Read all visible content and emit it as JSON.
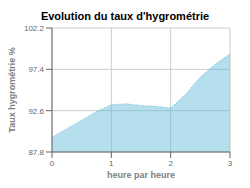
{
  "chart_data": {
    "type": "area",
    "title": "Evolution du taux d'hygrométrie",
    "xlabel": "heure par heure",
    "ylabel": "Taux hygrométrie %",
    "x": [
      0,
      0.25,
      0.5,
      0.75,
      1.0,
      1.25,
      1.5,
      1.75,
      2.0,
      2.25,
      2.5,
      2.75,
      3.0
    ],
    "values": [
      89.5,
      90.5,
      91.5,
      92.5,
      93.3,
      93.4,
      93.2,
      93.1,
      92.9,
      94.5,
      96.5,
      98.0,
      99.2
    ],
    "color": "#5bb8d4",
    "line_style": "dotted",
    "xlim": [
      0,
      3
    ],
    "ylim": [
      87.8,
      102.2
    ],
    "xticks": [
      0,
      1,
      2,
      3
    ],
    "yticks": [
      87.8,
      92.6,
      97.4,
      102.2
    ],
    "grid": true
  }
}
